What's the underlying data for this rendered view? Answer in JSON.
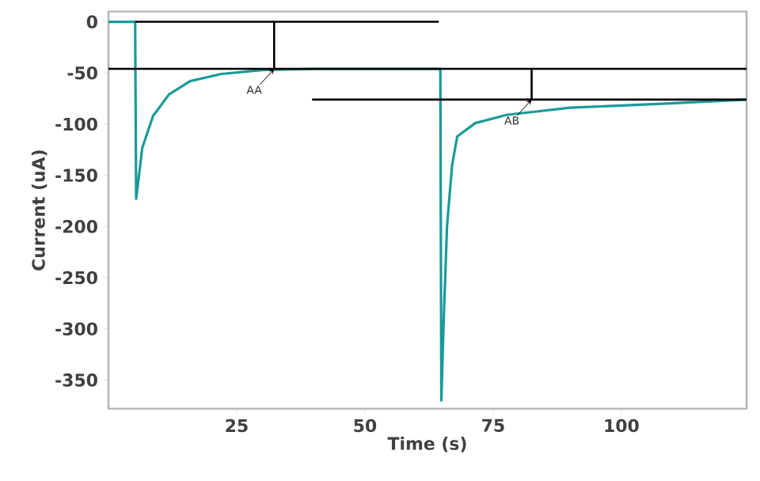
{
  "chart_data": {
    "type": "line",
    "xlabel": "Time (s)",
    "ylabel": "Current (uA)",
    "xlim": [
      0,
      124.4
    ],
    "ylim": [
      -378,
      10
    ],
    "xticks": [
      25,
      50,
      75,
      100
    ],
    "yticks": [
      0,
      -50,
      -100,
      -150,
      -200,
      -250,
      -300,
      -350
    ],
    "grid": false,
    "legend": false,
    "marker": "none",
    "line_style": "solid",
    "series": [
      {
        "color": "#1a9a9a",
        "x": [
          0,
          5.2,
          5.4,
          6.6,
          8.7,
          11.8,
          15.9,
          22,
          30.3,
          40,
          64.7,
          64.9,
          65.3,
          66,
          67,
          68,
          71.5,
          77.6,
          90,
          108,
          124.4
        ],
        "values": [
          0,
          0,
          -173,
          -123,
          -92,
          -71,
          -58,
          -51,
          -47,
          -46,
          -46,
          -370,
          -300,
          -200,
          -140,
          -112,
          -99,
          -91,
          -84,
          -80,
          -76
        ]
      },
      {
        "color": "#000000",
        "x": [
          64.4,
          32.3,
          32.3
        ],
        "values": [
          0,
          0,
          -46
        ]
      },
      {
        "color": "#000000",
        "x": [
          5.2,
          32.3
        ],
        "values": [
          0,
          0
        ]
      },
      {
        "color": "#000000",
        "x": [
          0,
          124.4
        ],
        "values": [
          -46,
          -46
        ]
      },
      {
        "color": "#000000",
        "x": [
          39.7,
          82.5,
          82.5
        ],
        "values": [
          -76,
          -76,
          -46
        ]
      },
      {
        "color": "#000000",
        "x": [
          82.5,
          124.4
        ],
        "values": [
          -76,
          -76
        ]
      }
    ],
    "annotations": [
      {
        "text": "AA",
        "x": 32.3,
        "y": -46
      },
      {
        "text": "AB",
        "x": 82.5,
        "y": -76
      }
    ]
  }
}
